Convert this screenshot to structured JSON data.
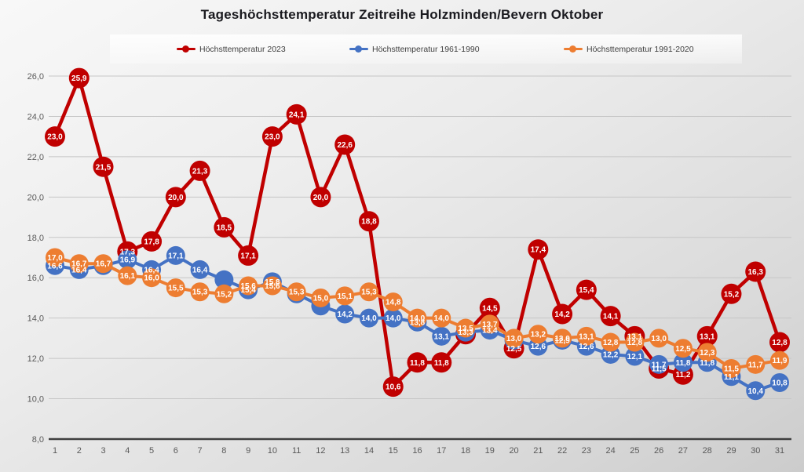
{
  "title": "Tageshöchsttemperatur Zeitreihe Holzminden/Bevern Oktober",
  "colors": {
    "series_2023": "#C00000",
    "series_1961_1990": "#4472C4",
    "series_1991_2020": "#ED7D31",
    "grid": "#c6c6c6",
    "axis_baseline": "#3f3f3f",
    "axis_text": "#595959",
    "title_text": "#1a1a1f",
    "data_label_text": "#ffffff"
  },
  "chart_data": {
    "type": "line",
    "title": "Tageshöchsttemperatur Zeitreihe Holzminden/Bevern Oktober",
    "xlabel": "",
    "ylabel": "",
    "x": [
      1,
      2,
      3,
      4,
      5,
      6,
      7,
      8,
      9,
      10,
      11,
      12,
      13,
      14,
      15,
      16,
      17,
      18,
      19,
      20,
      21,
      22,
      23,
      24,
      25,
      26,
      27,
      28,
      29,
      30,
      31
    ],
    "ylim": [
      8,
      26
    ],
    "y_tick_step": 2,
    "grid": true,
    "legend_position": "top",
    "decimal_separator": ",",
    "series": [
      {
        "name": "Höchsttemperatur 2023",
        "color": "#C00000",
        "values": [
          23.0,
          25.9,
          21.5,
          17.3,
          17.8,
          20.0,
          21.3,
          18.5,
          17.1,
          23.0,
          24.1,
          20.0,
          22.6,
          18.8,
          10.6,
          11.8,
          11.8,
          13.2,
          14.5,
          12.5,
          17.4,
          14.2,
          15.4,
          14.1,
          13.1,
          11.5,
          11.2,
          13.1,
          15.2,
          16.3,
          12.8
        ],
        "occluded_label_days": [
          18
        ]
      },
      {
        "name": "Höchsttemperatur 1961-1990",
        "color": "#4472C4",
        "values": [
          16.6,
          16.4,
          16.6,
          16.9,
          16.4,
          17.1,
          16.4,
          15.9,
          15.4,
          15.8,
          15.2,
          14.6,
          14.2,
          14.0,
          14.0,
          13.8,
          13.1,
          13.3,
          13.4,
          12.9,
          12.6,
          12.9,
          12.6,
          12.2,
          12.1,
          11.7,
          11.8,
          11.8,
          11.1,
          10.4,
          10.8
        ],
        "occluded_label_days": [
          3,
          8,
          11,
          12,
          20
        ]
      },
      {
        "name": "Höchsttemperatur 1991-2020",
        "color": "#ED7D31",
        "values": [
          17.0,
          16.7,
          16.7,
          16.1,
          16.0,
          15.5,
          15.3,
          15.2,
          15.6,
          15.6,
          15.3,
          15.0,
          15.1,
          15.3,
          14.8,
          14.0,
          14.0,
          13.5,
          13.7,
          13.0,
          13.2,
          13.0,
          13.1,
          12.8,
          12.8,
          13.0,
          12.5,
          12.3,
          11.5,
          11.7,
          11.9
        ],
        "occluded_label_days": []
      }
    ]
  }
}
